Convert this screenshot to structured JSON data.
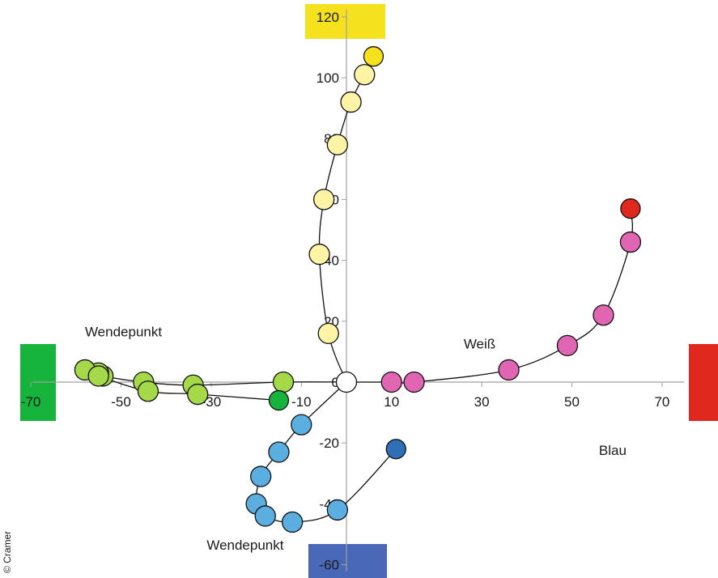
{
  "colors": {
    "pos_x_box": "#e0281e",
    "neg_x_box": "#16b43c",
    "pos_y_box": "#f5e11e",
    "neg_y_box": "#4a68b8",
    "axis": "#a0a0a0",
    "curve": "#111111"
  },
  "chart_data": {
    "type": "scatter",
    "xlim": [
      -70,
      75
    ],
    "ylim": [
      -60,
      120
    ],
    "x_ticks": [
      -70,
      -50,
      -30,
      -10,
      10,
      30,
      50,
      70
    ],
    "y_ticks": [
      120,
      100,
      80,
      60,
      40,
      20,
      0,
      -20,
      -40,
      -60
    ],
    "grid": false,
    "annotations": [
      {
        "text": "Wendepunkt",
        "x": -58,
        "y": 15
      },
      {
        "text": "Weiß",
        "x": 26,
        "y": 11
      },
      {
        "text": "Blau",
        "x": 56,
        "y": -24
      },
      {
        "text": "Wendepunkt",
        "x": -31,
        "y": -55
      }
    ],
    "credit": "© Cramer",
    "series": [
      {
        "color": "#f5e11e",
        "light_color": "#fff3a6",
        "points": [
          [
            0,
            0
          ],
          [
            -4,
            16
          ],
          [
            -6,
            42
          ],
          [
            -5,
            60
          ],
          [
            -2,
            78
          ],
          [
            1,
            92
          ],
          [
            4,
            101
          ],
          [
            6,
            107
          ]
        ]
      },
      {
        "color": "#e0281e",
        "light_color": "#e066b4",
        "points": [
          [
            0,
            0
          ],
          [
            10,
            0
          ],
          [
            15,
            0
          ],
          [
            36,
            4
          ],
          [
            49,
            12
          ],
          [
            57,
            22
          ],
          [
            63,
            46
          ],
          [
            63,
            57
          ]
        ]
      },
      {
        "color": "#16b43c",
        "light_color": "#a6d94a",
        "points": [
          [
            0,
            0
          ],
          [
            -14,
            0
          ],
          [
            -34,
            -1
          ],
          [
            -45,
            0
          ],
          [
            -54,
            2
          ],
          [
            -55,
            3
          ],
          [
            -58,
            4
          ],
          [
            -55,
            2
          ],
          [
            -44,
            -3
          ],
          [
            -33,
            -4
          ],
          [
            -15,
            -6
          ]
        ]
      },
      {
        "color": "#2f6fb5",
        "light_color": "#5aaee0",
        "points": [
          [
            0,
            0
          ],
          [
            -10,
            -14
          ],
          [
            -15,
            -23
          ],
          [
            -19,
            -31
          ],
          [
            -20,
            -40
          ],
          [
            -18,
            -44
          ],
          [
            -12,
            -46
          ],
          [
            -2,
            -42
          ],
          [
            11,
            -22
          ]
        ]
      }
    ]
  }
}
